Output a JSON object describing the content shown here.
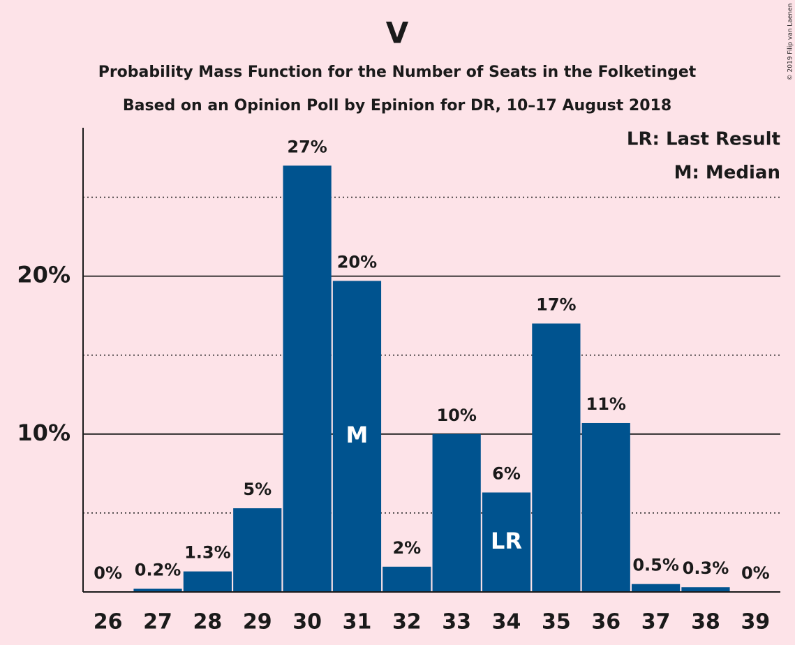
{
  "chart_data": {
    "type": "bar",
    "title": "V",
    "subtitle": [
      "Probability Mass Function for the Number of Seats in the Folketinget",
      "Based on an Opinion Poll by Epinion for DR, 10–17 August 2018"
    ],
    "categories": [
      "26",
      "27",
      "28",
      "29",
      "30",
      "31",
      "32",
      "33",
      "34",
      "35",
      "36",
      "37",
      "38",
      "39"
    ],
    "values": [
      0,
      0.2,
      1.3,
      5.3,
      27,
      19.7,
      1.6,
      10,
      6.3,
      17,
      10.7,
      0.5,
      0.3,
      0
    ],
    "value_labels": [
      "0%",
      "0.2%",
      "1.3%",
      "5%",
      "27%",
      "20%",
      "2%",
      "10%",
      "6%",
      "17%",
      "11%",
      "0.5%",
      "0.3%",
      "0%"
    ],
    "color": "#00538f",
    "ylim": [
      0,
      29.4
    ],
    "yticks": [
      {
        "value": 10,
        "label": "10%"
      },
      {
        "value": 20,
        "label": "20%"
      }
    ],
    "minor_gridlines": [
      5,
      15,
      25
    ],
    "grid": true,
    "bar_annotations": [
      {
        "category": "31",
        "label": "M"
      },
      {
        "category": "34",
        "label": "LR"
      }
    ],
    "legend": [
      "LR: Last Result",
      "M: Median"
    ],
    "legend_position": "upper right",
    "copyright": "© 2019 Filip van Laenen"
  }
}
